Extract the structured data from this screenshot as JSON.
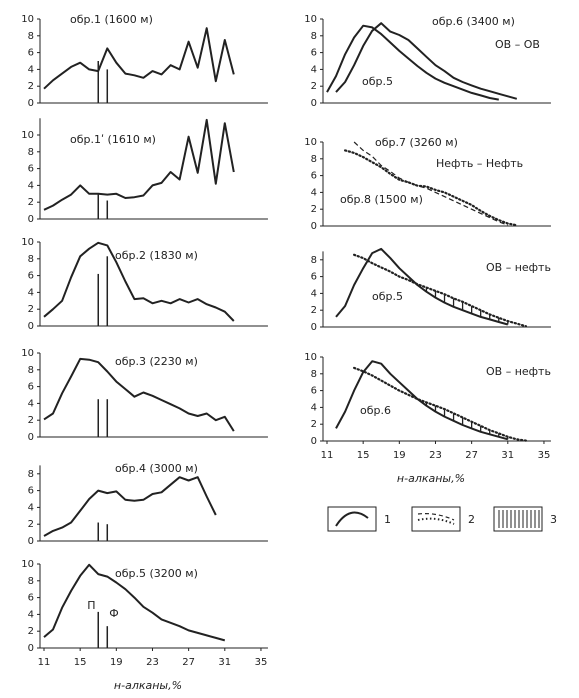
{
  "chart_data": [
    {
      "type": "line",
      "title": "обр.1 (1600 м)",
      "xlim": [
        11,
        35
      ],
      "ylim": [
        0,
        10
      ],
      "yticks": [
        0,
        2,
        4,
        6,
        8,
        10
      ],
      "series": [
        {
          "style": "solid",
          "x": [
            11,
            12,
            13,
            14,
            15,
            16,
            17,
            18,
            19,
            20,
            21,
            22,
            23,
            24,
            25,
            26,
            27,
            28,
            29,
            30,
            31,
            32
          ],
          "values": [
            1.7,
            2.7,
            3.5,
            4.3,
            4.8,
            4.0,
            3.8,
            6.5,
            4.8,
            3.5,
            3.3,
            3.0,
            3.8,
            3.4,
            4.5,
            4.0,
            7.3,
            4.2,
            8.9,
            2.6,
            7.5,
            3.4
          ]
        }
      ],
      "bars": {
        "x": [
          17,
          18
        ],
        "values": [
          5.0,
          4.0
        ]
      }
    },
    {
      "type": "line",
      "title": "обр.1ʹ (1610 м)",
      "xlim": [
        11,
        35
      ],
      "ylim": [
        0,
        12
      ],
      "yticks": [
        0,
        2,
        4,
        6,
        8,
        10
      ],
      "series": [
        {
          "style": "solid",
          "x": [
            11,
            12,
            13,
            14,
            15,
            16,
            17,
            18,
            19,
            20,
            21,
            22,
            23,
            24,
            25,
            26,
            27,
            28,
            29,
            30,
            31,
            32
          ],
          "values": [
            1.1,
            1.6,
            2.3,
            2.9,
            4.0,
            3.0,
            3.0,
            2.9,
            3.0,
            2.5,
            2.6,
            2.8,
            4.0,
            4.3,
            5.6,
            4.7,
            9.8,
            5.5,
            11.8,
            4.2,
            11.4,
            5.6
          ]
        }
      ],
      "bars": {
        "x": [
          17,
          18
        ],
        "values": [
          3.0,
          2.2
        ]
      }
    },
    {
      "type": "line",
      "title": "обр.2 (1830 м)",
      "xlim": [
        11,
        35
      ],
      "ylim": [
        0,
        10
      ],
      "yticks": [
        0,
        2,
        4,
        6,
        8,
        10
      ],
      "series": [
        {
          "style": "solid",
          "x": [
            11,
            12,
            13,
            14,
            15,
            16,
            17,
            18,
            19,
            20,
            21,
            22,
            23,
            24,
            25,
            26,
            27,
            28,
            29,
            30,
            31,
            32
          ],
          "values": [
            1.1,
            2.0,
            3.0,
            5.8,
            8.3,
            9.2,
            9.9,
            9.6,
            7.6,
            5.3,
            3.2,
            3.3,
            2.7,
            3.0,
            2.7,
            3.2,
            2.8,
            3.2,
            2.6,
            2.2,
            1.7,
            0.6
          ]
        }
      ],
      "bars": {
        "x": [
          17,
          18
        ],
        "values": [
          6.2,
          8.3
        ]
      }
    },
    {
      "type": "line",
      "title": "обр.3 (2230 м)",
      "xlim": [
        11,
        35
      ],
      "ylim": [
        0,
        10
      ],
      "yticks": [
        0,
        2,
        4,
        6,
        8,
        10
      ],
      "series": [
        {
          "style": "solid",
          "x": [
            11,
            12,
            13,
            14,
            15,
            16,
            17,
            18,
            19,
            20,
            21,
            22,
            23,
            24,
            25,
            26,
            27,
            28,
            29,
            30,
            31,
            32
          ],
          "values": [
            2.1,
            2.8,
            5.2,
            7.2,
            9.3,
            9.2,
            8.9,
            7.8,
            6.6,
            5.7,
            4.8,
            5.3,
            4.9,
            4.4,
            3.9,
            3.4,
            2.8,
            2.5,
            2.8,
            2.0,
            2.4,
            0.7
          ]
        }
      ],
      "bars": {
        "x": [
          17,
          18
        ],
        "values": [
          4.5,
          4.5
        ]
      }
    },
    {
      "type": "line",
      "title": "обр.4 (3000 м)",
      "xlim": [
        11,
        35
      ],
      "ylim": [
        0,
        9
      ],
      "yticks": [
        0,
        2,
        4,
        6,
        8
      ],
      "series": [
        {
          "style": "solid",
          "x": [
            11,
            12,
            13,
            14,
            15,
            16,
            17,
            18,
            19,
            20,
            21,
            22,
            23,
            24,
            25,
            26,
            27,
            28,
            29,
            30
          ],
          "values": [
            0.6,
            1.2,
            1.6,
            2.2,
            3.6,
            5.0,
            6.0,
            5.7,
            5.9,
            4.9,
            4.8,
            4.9,
            5.6,
            5.8,
            6.7,
            7.6,
            7.2,
            7.6,
            5.3,
            3.1
          ]
        }
      ],
      "bars": {
        "x": [
          17,
          18
        ],
        "values": [
          2.2,
          2.0
        ]
      }
    },
    {
      "type": "line",
      "title": "обр.5 (3200 м)",
      "xlim": [
        11,
        35
      ],
      "ylim": [
        0,
        10
      ],
      "yticks": [
        0,
        2,
        4,
        6,
        8,
        10
      ],
      "xticks": [
        11,
        15,
        19,
        23,
        27,
        31,
        35
      ],
      "xlabel": "н-алканы,%",
      "series": [
        {
          "style": "solid",
          "x": [
            11,
            12,
            13,
            14,
            15,
            16,
            17,
            18,
            19,
            20,
            21,
            22,
            23,
            24,
            25,
            26,
            27,
            28,
            29,
            30,
            31
          ],
          "values": [
            1.3,
            2.2,
            4.8,
            6.8,
            8.6,
            9.9,
            8.8,
            8.5,
            7.8,
            7.0,
            6.0,
            4.9,
            4.2,
            3.4,
            3.0,
            2.6,
            2.1,
            1.8,
            1.5,
            1.2,
            0.9
          ]
        }
      ],
      "bars": {
        "x": [
          17,
          18
        ],
        "values": [
          4.3,
          2.6
        ],
        "labels": [
          "П",
          "Ф"
        ]
      }
    },
    {
      "type": "line",
      "title": "ОВ – ОВ",
      "xlim": [
        11,
        35
      ],
      "ylim": [
        0,
        10
      ],
      "yticks": [
        0,
        2,
        4,
        6,
        8,
        10
      ],
      "series": [
        {
          "name": "обр.6 (3400 м)",
          "style": "solid",
          "x": [
            12,
            13,
            14,
            15,
            16,
            17,
            18,
            19,
            20,
            21,
            22,
            23,
            24,
            25,
            26,
            27,
            28,
            29,
            30,
            31,
            32
          ],
          "values": [
            1.3,
            2.5,
            4.5,
            6.8,
            8.6,
            9.5,
            8.5,
            8.1,
            7.5,
            6.5,
            5.5,
            4.5,
            3.8,
            3.0,
            2.5,
            2.1,
            1.7,
            1.4,
            1.1,
            0.8,
            0.5
          ]
        },
        {
          "name": "обр.5",
          "style": "solid",
          "x": [
            11,
            12,
            13,
            14,
            15,
            16,
            17,
            18,
            19,
            20,
            21,
            22,
            23,
            24,
            25,
            26,
            27,
            28,
            29,
            30
          ],
          "values": [
            1.3,
            3.2,
            5.8,
            7.8,
            9.2,
            9.0,
            8.2,
            7.2,
            6.2,
            5.3,
            4.4,
            3.6,
            2.9,
            2.4,
            2.0,
            1.6,
            1.2,
            0.9,
            0.6,
            0.4
          ]
        }
      ]
    },
    {
      "type": "line",
      "title": "Нефть – Нефть",
      "xlim": [
        11,
        35
      ],
      "ylim": [
        0,
        10
      ],
      "yticks": [
        0,
        2,
        4,
        6,
        8,
        10
      ],
      "series": [
        {
          "name": "обр.7 (3260 м)",
          "style": "dashed",
          "x": [
            14,
            15,
            16,
            17,
            18,
            19,
            20,
            21,
            22,
            23,
            24,
            25,
            26,
            27,
            28,
            29,
            30,
            31
          ],
          "values": [
            10,
            9,
            8.3,
            7.2,
            6.5,
            5.7,
            5.2,
            4.8,
            4.5,
            4.0,
            3.5,
            3.0,
            2.5,
            2.0,
            1.5,
            1.0,
            0.5,
            0.1
          ]
        },
        {
          "name": "обр.8 (1500 м)",
          "style": "dotted",
          "x": [
            13,
            14,
            15,
            16,
            17,
            18,
            19,
            20,
            21,
            22,
            23,
            24,
            25,
            26,
            27,
            28,
            29,
            30,
            31,
            32
          ],
          "values": [
            9,
            8.7,
            8.2,
            7.6,
            7,
            6.2,
            5.5,
            5.2,
            4.8,
            4.7,
            4.3,
            4,
            3.5,
            3,
            2.5,
            1.8,
            1.2,
            0.7,
            0.3,
            0.1
          ]
        }
      ]
    },
    {
      "type": "line",
      "title": "ОВ – нефть",
      "xlim": [
        11,
        35
      ],
      "ylim": [
        0,
        9
      ],
      "yticks": [
        0,
        2,
        4,
        6,
        8
      ],
      "hatch": true,
      "series": [
        {
          "name": "обр.5",
          "style": "solid",
          "x": [
            12,
            13,
            14,
            15,
            16,
            17,
            18,
            19,
            20,
            21,
            22,
            23,
            24,
            25,
            26,
            27,
            28,
            29,
            30,
            31
          ],
          "values": [
            1.2,
            2.5,
            5,
            7,
            8.8,
            9.3,
            8.2,
            7,
            6,
            5,
            4.2,
            3.5,
            2.9,
            2.4,
            2,
            1.6,
            1.2,
            0.9,
            0.6,
            0.3
          ]
        },
        {
          "style": "dotted",
          "x": [
            14,
            15,
            16,
            17,
            18,
            19,
            20,
            21,
            22,
            23,
            24,
            25,
            26,
            27,
            28,
            29,
            30,
            31,
            32,
            33
          ],
          "values": [
            8.6,
            8.2,
            7.6,
            7.1,
            6.6,
            6.0,
            5.6,
            5.1,
            4.7,
            4.3,
            3.9,
            3.4,
            3.0,
            2.5,
            2.0,
            1.5,
            1.1,
            0.7,
            0.4,
            0.1
          ]
        }
      ]
    },
    {
      "type": "line",
      "title": "ОВ – нефть",
      "xlim": [
        11,
        35
      ],
      "ylim": [
        0,
        10
      ],
      "yticks": [
        0,
        2,
        4,
        6,
        8,
        10
      ],
      "hatch": true,
      "xticks": [
        11,
        15,
        19,
        23,
        27,
        31,
        35
      ],
      "xlabel": "н-алканы,%",
      "series": [
        {
          "name": "обр.6",
          "style": "solid",
          "x": [
            12,
            13,
            14,
            15,
            16,
            17,
            18,
            19,
            20,
            21,
            22,
            23,
            24,
            25,
            26,
            27,
            28,
            29,
            30,
            31
          ],
          "values": [
            1.5,
            3.5,
            6,
            8.2,
            9.5,
            9.2,
            8,
            7,
            6,
            5,
            4.2,
            3.5,
            2.9,
            2.4,
            1.9,
            1.5,
            1.1,
            0.8,
            0.5,
            0.2
          ]
        },
        {
          "style": "dotted",
          "x": [
            14,
            15,
            16,
            17,
            18,
            19,
            20,
            21,
            22,
            23,
            24,
            25,
            26,
            27,
            28,
            29,
            30,
            31,
            32,
            33
          ],
          "values": [
            8.7,
            8.3,
            7.8,
            7.2,
            6.6,
            6,
            5.5,
            5,
            4.6,
            4.2,
            3.8,
            3.3,
            2.8,
            2.3,
            1.8,
            1.3,
            0.9,
            0.5,
            0.2,
            0.05
          ]
        }
      ]
    }
  ],
  "legend": [
    "1",
    "2",
    "3"
  ]
}
